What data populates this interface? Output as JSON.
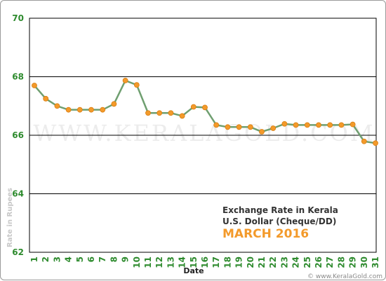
{
  "chart_data": {
    "type": "line",
    "title": "Exchange Rate in Kerala",
    "subtitle": "U.S. Dollar (Cheque/DD)",
    "period": "MARCH 2016",
    "xlabel": "Date",
    "ylabel": "Rate in Rupees",
    "ylim": [
      62,
      70
    ],
    "yticks": [
      "62",
      "64",
      "66",
      "68",
      "70"
    ],
    "categories": [
      "1",
      "2",
      "3",
      "4",
      "5",
      "6",
      "7",
      "8",
      "9",
      "10",
      "11",
      "12",
      "13",
      "14",
      "15",
      "16",
      "17",
      "18",
      "19",
      "20",
      "21",
      "22",
      "23",
      "24",
      "25",
      "26",
      "27",
      "28",
      "29",
      "30",
      "31"
    ],
    "values": [
      67.7,
      67.25,
      67.0,
      66.87,
      66.87,
      66.87,
      66.87,
      67.07,
      67.87,
      67.72,
      66.76,
      66.76,
      66.76,
      66.66,
      66.97,
      66.95,
      66.35,
      66.28,
      66.28,
      66.28,
      66.12,
      66.24,
      66.39,
      66.35,
      66.35,
      66.35,
      66.35,
      66.35,
      66.37,
      65.79,
      65.73
    ],
    "grid": "horizontal",
    "colors": {
      "line": "#6f9f70",
      "marker": "#f39a2b",
      "tick_text": "#2e8b2e",
      "title_accent": "#f39a2b"
    },
    "watermark": "WWW.KERALAGOLD.COM",
    "copyright": "© www.KeralaGold.com"
  }
}
